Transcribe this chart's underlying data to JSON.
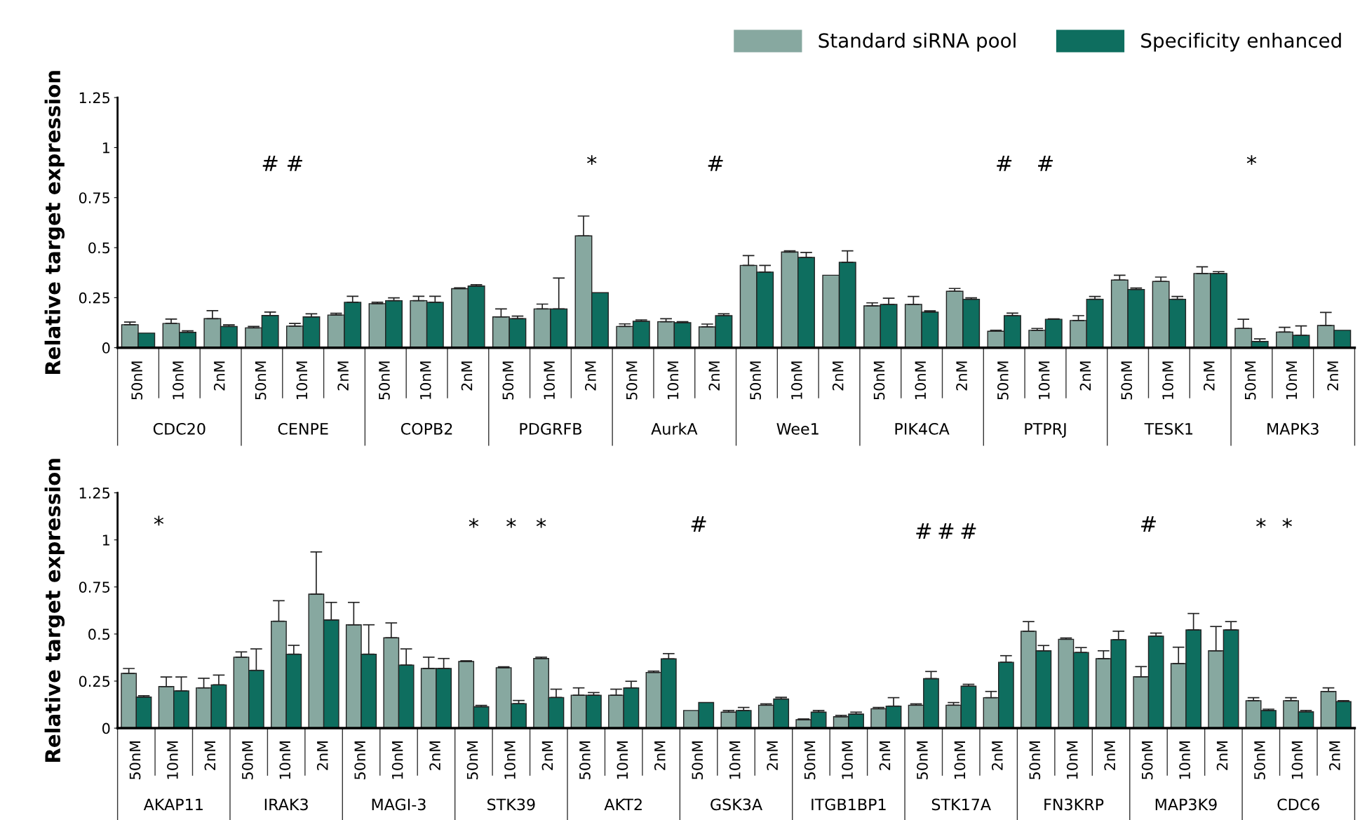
{
  "chart_data": [
    {
      "type": "bar",
      "ylabel": "Relative target expression",
      "ylim": [
        0,
        1.25
      ],
      "yticks": [
        0,
        0.25,
        0.5,
        0.75,
        1,
        1.25
      ],
      "grid": false,
      "legend": "top right",
      "categories": [
        "50nM",
        "10nM",
        "2nM",
        "50nM",
        "10nM",
        "2nM",
        "50nM",
        "10nM",
        "2nM",
        "50nM",
        "10nM",
        "2nM",
        "50nM",
        "10nM",
        "2nM",
        "50nM",
        "10nM",
        "2nM",
        "50nM",
        "10nM",
        "2nM",
        "50nM",
        "10nM",
        "2nM",
        "50nM",
        "10nM",
        "2nM",
        "50nM",
        "10nM",
        "2nM"
      ],
      "series": [
        {
          "name": "Standard siRNA pool",
          "color": "#87a8a0",
          "values": [
            0.115,
            0.121,
            0.145,
            0.099,
            0.108,
            0.163,
            0.22,
            0.235,
            0.295,
            0.154,
            0.194,
            0.559,
            0.106,
            0.13,
            0.104,
            0.411,
            0.478,
            0.362,
            0.209,
            0.216,
            0.282,
            0.082,
            0.087,
            0.136,
            0.338,
            0.331,
            0.371,
            0.096,
            0.078,
            0.111
          ],
          "errors": [
            [
              0.115,
              0.128
            ],
            [
              0.121,
              0.143
            ],
            [
              0.145,
              0.185
            ],
            [
              0.099,
              0.106
            ],
            [
              0.108,
              0.121
            ],
            [
              0.163,
              0.172
            ],
            [
              0.22,
              0.227
            ],
            [
              0.235,
              0.257
            ],
            [
              0.295,
              0.299
            ],
            [
              0.154,
              0.194
            ],
            [
              0.194,
              0.218
            ],
            [
              0.559,
              0.658
            ],
            [
              0.106,
              0.119
            ],
            [
              0.13,
              0.145
            ],
            [
              0.104,
              0.118
            ],
            [
              0.411,
              0.46
            ],
            [
              0.478,
              0.484
            ],
            null,
            [
              0.209,
              0.224
            ],
            [
              0.216,
              0.256
            ],
            [
              0.282,
              0.296
            ],
            [
              0.082,
              0.087
            ],
            [
              0.087,
              0.096
            ],
            [
              0.136,
              0.16
            ],
            [
              0.338,
              0.362
            ],
            [
              0.331,
              0.353
            ],
            [
              0.371,
              0.404
            ],
            [
              0.096,
              0.142
            ],
            [
              0.078,
              0.102
            ],
            [
              0.111,
              0.176
            ]
          ]
        },
        {
          "name": "Specificity enhanced",
          "color": "#0e6e5f",
          "values": [
            0.073,
            0.077,
            0.106,
            0.161,
            0.154,
            0.227,
            0.235,
            0.227,
            0.308,
            0.145,
            0.194,
            0.275,
            0.132,
            0.125,
            0.16,
            0.378,
            0.451,
            0.427,
            0.216,
            0.178,
            0.242,
            0.16,
            0.142,
            0.242,
            0.291,
            0.242,
            0.371,
            0.031,
            0.062,
            0.087
          ],
          "errors": [
            null,
            [
              0.077,
              0.084
            ],
            [
              0.106,
              0.114
            ],
            [
              0.161,
              0.178
            ],
            [
              0.154,
              0.169
            ],
            [
              0.227,
              0.257
            ],
            [
              0.235,
              0.249
            ],
            [
              0.227,
              0.257
            ],
            [
              0.308,
              0.315
            ],
            [
              0.145,
              0.158
            ],
            [
              0.194,
              0.348
            ],
            null,
            [
              0.132,
              0.139
            ],
            [
              0.125,
              0.13
            ],
            [
              0.16,
              0.169
            ],
            [
              0.378,
              0.411
            ],
            [
              0.451,
              0.476
            ],
            [
              0.427,
              0.484
            ],
            [
              0.216,
              0.247
            ],
            [
              0.178,
              0.184
            ],
            [
              0.242,
              0.249
            ],
            [
              0.16,
              0.173
            ],
            [
              0.142,
              0.144
            ],
            [
              0.242,
              0.256
            ],
            [
              0.291,
              0.298
            ],
            [
              0.242,
              0.256
            ],
            [
              0.371,
              0.38
            ],
            [
              0.031,
              0.044
            ],
            [
              0.062,
              0.109
            ],
            null
          ]
        }
      ],
      "annotations": [
        "CDC20",
        "CENPE",
        "COPB2",
        "PDGRFB",
        "AurkA",
        "Wee1",
        "PIK4CA",
        "PTPRJ",
        "TESK1",
        "MAPK3",
        "#",
        "#",
        "*",
        "#",
        "#",
        "#",
        "*"
      ]
    },
    {
      "type": "bar",
      "ylabel": "Relative target expression",
      "ylim": [
        0,
        1.25
      ],
      "yticks": [
        0,
        0.25,
        0.5,
        0.75,
        1,
        1.25
      ],
      "grid": false,
      "categories": [
        "50nM",
        "10nM",
        "2nM",
        "50nM",
        "10nM",
        "2nM",
        "50nM",
        "10nM",
        "2nM",
        "50nM",
        "10nM",
        "2nM",
        "50nM",
        "10nM",
        "2nM",
        "50nM",
        "10nM",
        "2nM",
        "50nM",
        "10nM",
        "2nM",
        "50nM",
        "10nM",
        "2nM",
        "50nM",
        "10nM",
        "2nM",
        "50nM",
        "10nM",
        "2nM",
        "50nM",
        "10nM",
        "2nM"
      ],
      "series": [
        {
          "color": "#87a8a0",
          "values": [
            0.291,
            0.221,
            0.214,
            0.377,
            0.568,
            0.712,
            0.549,
            0.48,
            0.317,
            0.354,
            0.321,
            0.37,
            0.175,
            0.175,
            0.296,
            0.094,
            0.085,
            0.122,
            0.045,
            0.061,
            0.103,
            0.122,
            0.122,
            0.162,
            0.515,
            0.472,
            0.369,
            0.273,
            0.343,
            0.411,
            0.146,
            0.146,
            0.195
          ],
          "errors": [
            [
              0.291,
              0.317
            ],
            [
              0.221,
              0.272
            ],
            [
              0.214,
              0.265
            ],
            [
              0.377,
              0.405
            ],
            [
              0.568,
              0.677
            ],
            [
              0.712,
              0.936
            ],
            [
              0.549,
              0.668
            ],
            [
              0.48,
              0.559
            ],
            [
              0.317,
              0.377
            ],
            [
              0.354,
              0.358
            ],
            [
              0.321,
              0.326
            ],
            [
              0.37,
              0.377
            ],
            [
              0.175,
              0.214
            ],
            [
              0.175,
              0.207
            ],
            [
              0.296,
              0.303
            ],
            null,
            [
              0.085,
              0.094
            ],
            [
              0.122,
              0.129
            ],
            [
              0.045,
              0.049
            ],
            [
              0.061,
              0.068
            ],
            [
              0.103,
              0.11
            ],
            [
              0.122,
              0.129
            ],
            [
              0.122,
              0.136
            ],
            [
              0.162,
              0.195
            ],
            [
              0.515,
              0.566
            ],
            [
              0.472,
              0.479
            ],
            [
              0.369,
              0.411
            ],
            [
              0.273,
              0.327
            ],
            [
              0.343,
              0.43
            ],
            [
              0.411,
              0.54
            ],
            [
              0.146,
              0.162
            ],
            [
              0.146,
              0.162
            ],
            [
              0.195,
              0.214
            ]
          ]
        },
        {
          "color": "#0e6e5f",
          "values": [
            0.165,
            0.198,
            0.23,
            0.307,
            0.393,
            0.575,
            0.393,
            0.335,
            0.317,
            0.114,
            0.13,
            0.163,
            0.175,
            0.214,
            0.368,
            0.136,
            0.094,
            0.155,
            0.085,
            0.075,
            0.117,
            0.263,
            0.223,
            0.35,
            0.411,
            0.402,
            0.47,
            0.489,
            0.522,
            0.522,
            0.094,
            0.087,
            0.141
          ],
          "errors": [
            [
              0.165,
              0.172
            ],
            [
              0.198,
              0.272
            ],
            [
              0.23,
              0.282
            ],
            [
              0.307,
              0.421
            ],
            [
              0.393,
              0.44
            ],
            [
              0.575,
              0.668
            ],
            [
              0.393,
              0.549
            ],
            [
              0.335,
              0.421
            ],
            [
              0.317,
              0.37
            ],
            [
              0.114,
              0.121
            ],
            [
              0.13,
              0.147
            ],
            [
              0.163,
              0.207
            ],
            [
              0.175,
              0.189
            ],
            [
              0.214,
              0.249
            ],
            [
              0.368,
              0.396
            ],
            null,
            [
              0.094,
              0.11
            ],
            [
              0.155,
              0.164
            ],
            [
              0.085,
              0.094
            ],
            [
              0.075,
              0.085
            ],
            [
              0.117,
              0.162
            ],
            [
              0.263,
              0.301
            ],
            [
              0.223,
              0.233
            ],
            [
              0.35,
              0.385
            ],
            [
              0.411,
              0.439
            ],
            [
              0.402,
              0.428
            ],
            [
              0.47,
              0.515
            ],
            [
              0.489,
              0.505
            ],
            [
              0.522,
              0.609
            ],
            [
              0.522,
              0.566
            ],
            [
              0.094,
              0.101
            ],
            [
              0.087,
              0.094
            ],
            [
              0.141,
              0.146
            ]
          ]
        }
      ],
      "annotations": [
        "AKAP11",
        "IRAK3",
        "MAGI-3",
        "STK39",
        "AKT2",
        "GSK3A",
        "ITGB1BP1",
        "STK17A",
        "FN3KRP",
        "MAP3K9",
        "CDC6",
        "*",
        "*",
        "*",
        "*",
        "#",
        "#",
        "#",
        "#",
        "#",
        "*",
        "*"
      ]
    }
  ]
}
